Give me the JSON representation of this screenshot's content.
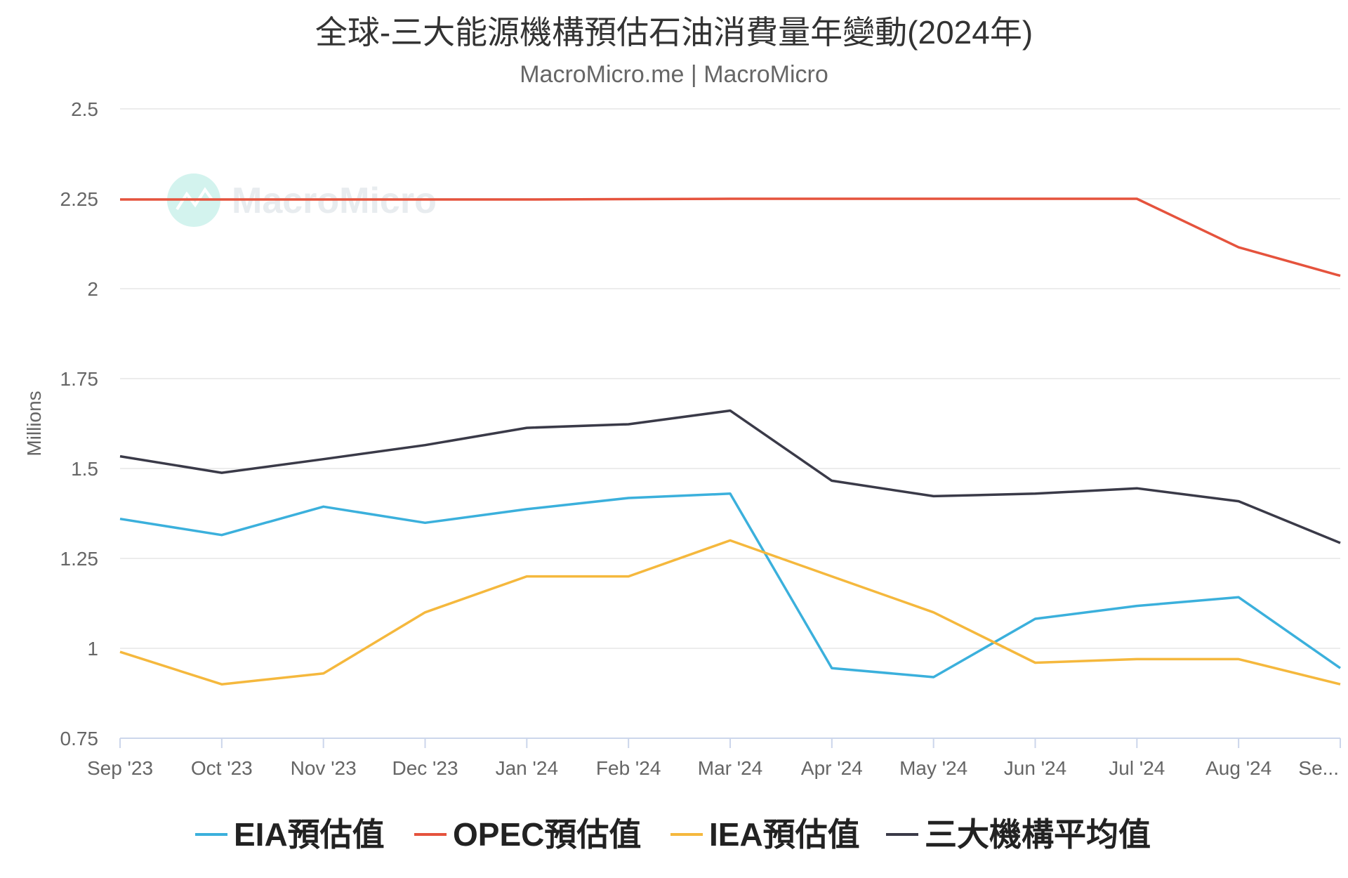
{
  "chart_data": {
    "type": "line",
    "title": "全球-三大能源機構預估石油消費量年變動(2024年)",
    "subtitle": "MacroMicro.me | MacroMicro",
    "watermark": "MacroMicro",
    "ylabel": "Millions",
    "xlabel": "",
    "ylim": [
      0.75,
      2.5
    ],
    "yticks": [
      "0.75",
      "1",
      "1.25",
      "1.5",
      "1.75",
      "2",
      "2.25",
      "2.5"
    ],
    "categories": [
      "Sep '23",
      "Oct '23",
      "Nov '23",
      "Dec '23",
      "Jan '24",
      "Feb '24",
      "Mar '24",
      "Apr '24",
      "May '24",
      "Jun '24",
      "Jul '24",
      "Aug '24",
      "Se..."
    ],
    "grid": true,
    "legend_position": "bottom",
    "series": [
      {
        "name": "EIA預估值",
        "color": "#3bb0dc",
        "values": [
          1.36,
          1.315,
          1.394,
          1.349,
          1.387,
          1.418,
          1.43,
          0.945,
          0.92,
          1.082,
          1.118,
          1.142,
          0.945
        ]
      },
      {
        "name": "OPEC預估值",
        "color": "#e5533d",
        "values": [
          2.248,
          2.248,
          2.248,
          2.248,
          2.248,
          2.249,
          2.25,
          2.25,
          2.25,
          2.25,
          2.25,
          2.115,
          2.036
        ]
      },
      {
        "name": "IEA預估值",
        "color": "#f5b83d",
        "values": [
          0.99,
          0.9,
          0.93,
          1.1,
          1.2,
          1.2,
          1.3,
          1.2,
          1.1,
          0.96,
          0.97,
          0.97,
          0.9
        ]
      },
      {
        "name": "三大機構平均值",
        "color": "#3a3a48",
        "values": [
          1.534,
          1.488,
          1.526,
          1.565,
          1.613,
          1.623,
          1.661,
          1.466,
          1.423,
          1.43,
          1.445,
          1.409,
          1.293
        ]
      }
    ]
  }
}
